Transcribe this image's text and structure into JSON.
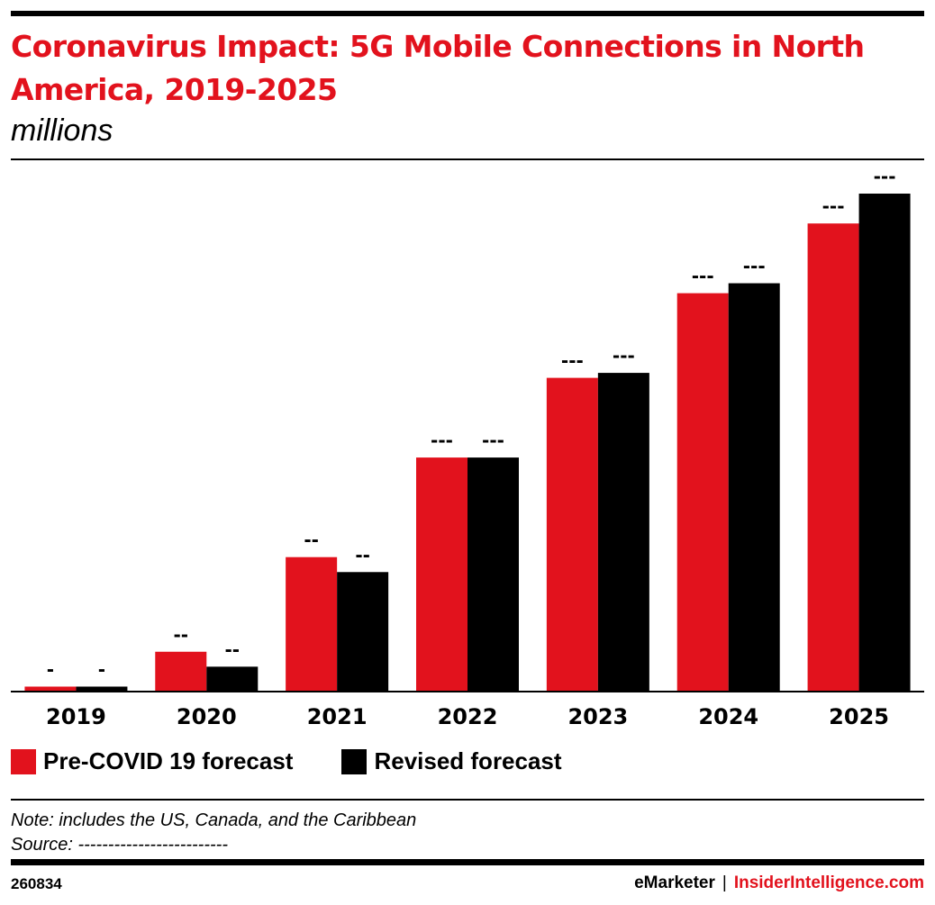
{
  "header": {
    "title": "Coronavirus Impact: 5G Mobile Connections in North America, 2019-2025",
    "subtitle": "millions"
  },
  "legend": {
    "items": [
      {
        "label": "Pre-COVID 19 forecast",
        "color": "#e2121d"
      },
      {
        "label": "Revised forecast",
        "color": "#000000"
      }
    ]
  },
  "note": {
    "text": "Note: includes the US, Canada, and the Caribbean",
    "source": "Source: -------------------------"
  },
  "footer": {
    "id": "260834",
    "brand": "eMarketer",
    "separator": "|",
    "site": "InsiderIntelligence.com"
  },
  "chart_data": {
    "type": "bar",
    "categories": [
      "2019",
      "2020",
      "2021",
      "2022",
      "2023",
      "2024",
      "2025"
    ],
    "series": [
      {
        "name": "Pre-COVID 19 forecast",
        "color": "#e2121d",
        "values": [
          1,
          8,
          27,
          47,
          63,
          80,
          94
        ],
        "data_labels": [
          "-",
          "--",
          "--",
          "---",
          "---",
          "---",
          "---"
        ]
      },
      {
        "name": "Revised forecast",
        "color": "#000000",
        "values": [
          1,
          5,
          24,
          47,
          64,
          82,
          100
        ],
        "data_labels": [
          "-",
          "--",
          "--",
          "---",
          "---",
          "---",
          "---"
        ]
      }
    ],
    "ylim": [
      0,
      100
    ],
    "grid": false,
    "legend_position": "bottom-left"
  }
}
